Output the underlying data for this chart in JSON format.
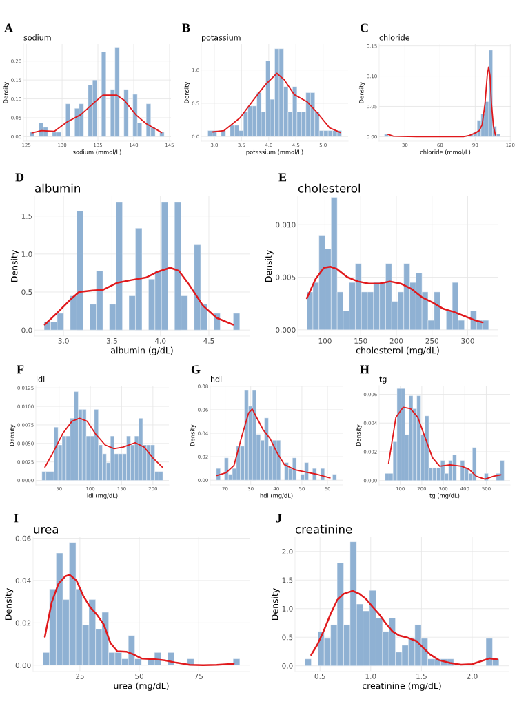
{
  "chart_data": [
    {
      "type": "histogram",
      "title": "A",
      "subtitle": "sodium",
      "xlabel": "sodium (mmol/L)",
      "ylabel": "Density",
      "grid": true,
      "xlim": [
        124.6,
        145.2
      ],
      "xticks": [
        125,
        130,
        135,
        140,
        145
      ],
      "ylim": [
        -0.012,
        0.245
      ],
      "yticks": [
        {
          "value": 0,
          "label": "0.00"
        },
        {
          "value": 0.05,
          "label": "0.05"
        },
        {
          "value": 0.1,
          "label": "0.10"
        },
        {
          "value": 0.15,
          "label": "0.15"
        },
        {
          "value": 0.2,
          "label": "0.20"
        }
      ],
      "series": [
        {
          "color": "#8fb1d3",
          "bins": [
            125.5,
            126.13,
            126.75,
            127.38,
            128,
            128.63,
            129.25,
            129.88,
            130.5,
            131.13,
            131.75,
            132.38,
            133,
            133.63,
            134.25,
            134.88,
            135.5,
            136.13,
            136.75,
            137.38,
            138,
            138.63,
            139.25,
            139.88,
            140.5,
            141.13,
            141.75,
            142.38,
            143,
            143.63,
            144.25
          ],
          "values": [
            0.012,
            0,
            0.037,
            0.025,
            0,
            0.012,
            0.012,
            0,
            0.087,
            0,
            0.075,
            0.087,
            0,
            0.137,
            0.15,
            0,
            0.225,
            0,
            0.125,
            0.237,
            0,
            0.125,
            0,
            0.112,
            0.037,
            0,
            0.087,
            0.025,
            0,
            0.012
          ]
        },
        {
          "type": "line",
          "color": "#e0191c",
          "x": [
            125.8,
            127.1,
            128.9,
            130.7,
            132.6,
            134.4,
            135.7,
            137.6,
            138.7,
            140.3,
            141.7,
            143.9
          ],
          "values": [
            0.01,
            0.016,
            0.014,
            0.039,
            0.058,
            0.089,
            0.11,
            0.11,
            0.096,
            0.058,
            0.035,
            0.011
          ]
        }
      ]
    },
    {
      "type": "histogram",
      "title": "B",
      "subtitle": "potassium",
      "xlabel": "potassium (mmol/L)",
      "ylabel": "Density",
      "grid": true,
      "xlim": [
        2.76,
        5.46
      ],
      "xticks": [
        {
          "value": 3,
          "label": "3.0"
        },
        {
          "value": 3.5,
          "label": "3.5"
        },
        {
          "value": 4,
          "label": "4.0"
        },
        {
          "value": 4.5,
          "label": "4.5"
        },
        {
          "value": 5,
          "label": "5.0"
        }
      ],
      "ylim": [
        -0.07,
        1.39
      ],
      "yticks": [
        {
          "value": 0,
          "label": "0.0"
        },
        {
          "value": 0.5,
          "label": "0.5"
        },
        {
          "value": 1,
          "label": "1.0"
        }
      ],
      "series": [
        {
          "color": "#8fb1d3",
          "bins": [
            2.88,
            2.962,
            3.044,
            3.126,
            3.208,
            3.29,
            3.372,
            3.454,
            3.536,
            3.618,
            3.7,
            3.782,
            3.864,
            3.946,
            4.028,
            4.11,
            4.192,
            4.274,
            4.356,
            4.438,
            4.52,
            4.602,
            4.684,
            4.766,
            4.848,
            4.93,
            5.012,
            5.094,
            5.176,
            5.258,
            5.34
          ],
          "values": [
            0.09,
            0.09,
            0,
            0.09,
            0,
            0.17,
            0.17,
            0.09,
            0.37,
            0.46,
            0.46,
            0.66,
            0.37,
            1.14,
            0.56,
            1.32,
            1.32,
            0.75,
            0.37,
            0.75,
            0.37,
            0.37,
            0.66,
            0.66,
            0.37,
            0.09,
            0.09,
            0.09,
            0.09,
            0.09
          ]
        },
        {
          "type": "line",
          "color": "#e0191c",
          "x": [
            2.97,
            3.18,
            3.47,
            3.71,
            3.94,
            4.15,
            4.29,
            4.47,
            4.71,
            4.88,
            5.12,
            5.32
          ],
          "values": [
            0.07,
            0.09,
            0.28,
            0.54,
            0.78,
            0.95,
            0.85,
            0.63,
            0.52,
            0.37,
            0.13,
            0.06
          ]
        }
      ]
    },
    {
      "type": "histogram",
      "title": "C",
      "subtitle": "chloride",
      "xlabel": "chloride (mmol/L)",
      "ylabel": "Density",
      "grid": true,
      "xlim": [
        8,
        121
      ],
      "xticks": [
        30,
        60,
        90,
        120
      ],
      "ylim": [
        -0.0075,
        0.153
      ],
      "yticks": [
        {
          "value": 0,
          "label": "0.00"
        },
        {
          "value": 0.05,
          "label": "0.05"
        },
        {
          "value": 0.1,
          "label": "0.10"
        },
        {
          "value": 0.15,
          "label": "0.15"
        }
      ],
      "series": [
        {
          "color": "#8fb1d3",
          "bins": [
            12.5,
            15.8,
            19.1,
            22.4,
            25.7,
            29,
            32.3,
            35.6,
            38.9,
            42.2,
            45.5,
            48.8,
            52.1,
            55.4,
            58.7,
            62,
            65.3,
            68.6,
            71.9,
            75.2,
            78.5,
            81.8,
            85.1,
            88.4,
            91.7,
            95,
            98.3,
            101.6,
            104.9,
            108.2,
            111.5
          ],
          "values": [
            0.004,
            0,
            0,
            0,
            0,
            0,
            0,
            0,
            0,
            0,
            0,
            0,
            0,
            0,
            0,
            0,
            0,
            0,
            0,
            0,
            0,
            0,
            0.003,
            0.008,
            0.027,
            0.038,
            0.058,
            0.143,
            0.017,
            0.005
          ]
        },
        {
          "type": "line",
          "color": "#e0191c",
          "x": [
            15.4,
            20,
            40,
            60,
            80,
            85,
            90,
            93.5,
            96,
            98.4,
            100.3,
            101.5,
            102.7,
            103.9,
            105.6,
            107.3
          ],
          "values": [
            0.004,
            0.001,
            0,
            0,
            0,
            0.002,
            0.006,
            0.01,
            0.02,
            0.055,
            0.101,
            0.115,
            0.101,
            0.055,
            0.017,
            0.003
          ]
        }
      ]
    },
    {
      "type": "histogram",
      "title": "D",
      "subtitle": "albumin",
      "xlabel": "albumin (g/dL)",
      "ylabel": "Density",
      "grid": true,
      "xlim": [
        2.7,
        4.92
      ],
      "xticks": [
        {
          "value": 3,
          "label": "3.0"
        },
        {
          "value": 3.5,
          "label": "3.5"
        },
        {
          "value": 4,
          "label": "4.0"
        },
        {
          "value": 4.5,
          "label": "4.5"
        }
      ],
      "ylim": [
        -0.08,
        1.76
      ],
      "yticks": [
        {
          "value": 0,
          "label": "0.0"
        },
        {
          "value": 0.5,
          "label": "0.5"
        },
        {
          "value": 1,
          "label": "1.0"
        },
        {
          "value": 1.5,
          "label": "1.5"
        }
      ],
      "series": [
        {
          "color": "#8fb1d3",
          "bins": [
            2.8,
            2.867,
            2.935,
            3.002,
            3.069,
            3.137,
            3.204,
            3.271,
            3.338,
            3.406,
            3.473,
            3.54,
            3.608,
            3.675,
            3.742,
            3.81,
            3.877,
            3.944,
            4.011,
            4.079,
            4.146,
            4.213,
            4.281,
            4.348,
            4.415,
            4.483,
            4.55,
            4.617,
            4.684,
            4.752,
            4.819
          ],
          "values": [
            0.11,
            0.11,
            0.22,
            0,
            0.45,
            1.57,
            0,
            0.34,
            0.78,
            0,
            0.34,
            1.68,
            0,
            0.45,
            1.34,
            0,
            0.67,
            0.78,
            1.68,
            0,
            1.68,
            0.45,
            0,
            1.12,
            0.34,
            0,
            0.22,
            0,
            0,
            0.22
          ]
        },
        {
          "type": "line",
          "color": "#e0191c",
          "x": [
            2.806,
            2.93,
            3.07,
            3.16,
            3.3,
            3.41,
            3.55,
            3.71,
            3.85,
            3.98,
            4.1,
            4.19,
            4.3,
            4.44,
            4.58,
            4.75
          ],
          "values": [
            0.07,
            0.22,
            0.4,
            0.5,
            0.52,
            0.53,
            0.62,
            0.66,
            0.69,
            0.77,
            0.82,
            0.78,
            0.59,
            0.32,
            0.16,
            0.07
          ]
        }
      ]
    },
    {
      "type": "histogram",
      "title": "E",
      "subtitle": "cholesterol",
      "xlabel": "cholesterol (mg/dL)",
      "ylabel": "Density",
      "grid": true,
      "xlim": [
        61.9,
        342
      ],
      "xticks": [
        100,
        150,
        200,
        250,
        300
      ],
      "ylim": [
        -0.0006,
        0.0127
      ],
      "yticks": [
        {
          "value": 0,
          "label": "0.000"
        },
        {
          "value": 0.005,
          "label": "0.005"
        },
        {
          "value": 0.01,
          "label": "0.010"
        }
      ],
      "series": [
        {
          "color": "#8fb1d3",
          "bins": [
            74.6,
            83.1,
            91.6,
            100.1,
            108.6,
            117.1,
            125.5,
            134.0,
            142.5,
            151.0,
            159.5,
            168.0,
            176.5,
            185.0,
            193.5,
            202.0,
            210.4,
            218.9,
            227.4,
            235.9,
            244.4,
            252.9,
            261.4,
            269.9,
            278.4,
            286.9,
            295.3,
            303.8,
            312.3,
            320.8,
            329.3
          ],
          "values": [
            0.0036,
            0.0045,
            0.009,
            0.0077,
            0.0126,
            0.0036,
            0.0018,
            0.0045,
            0.0063,
            0.0036,
            0.0036,
            0.0045,
            0.0045,
            0.0063,
            0.0027,
            0.0036,
            0.0063,
            0.0045,
            0.0054,
            0.0036,
            0.0009,
            0.0036,
            0,
            0.0018,
            0.0045,
            0.0009,
            0,
            0.0018,
            0.0009,
            0.0009
          ]
        },
        {
          "type": "line",
          "color": "#e0191c",
          "x": [
            74.6,
            86.6,
            98.5,
            107.5,
            116.4,
            131.3,
            146.3,
            161.2,
            176.1,
            191,
            206,
            220.9,
            235.8,
            250.7,
            265.7,
            280.6,
            295.5,
            310.4,
            320.9
          ],
          "values": [
            0.003,
            0.0048,
            0.0059,
            0.006,
            0.0058,
            0.005,
            0.0046,
            0.0044,
            0.0044,
            0.0046,
            0.0044,
            0.0039,
            0.0031,
            0.0026,
            0.002,
            0.0017,
            0.0013,
            0.0009,
            0.0007
          ]
        }
      ]
    },
    {
      "type": "histogram",
      "title": "F",
      "subtitle": "ldl",
      "xlabel": "ldl (mg/dL)",
      "ylabel": "Density",
      "grid": true,
      "xlim": [
        12.9,
        225.5
      ],
      "xticks": [
        50,
        100,
        150,
        200
      ],
      "ylim": [
        -0.0006,
        0.0128
      ],
      "yticks": [
        {
          "value": 0,
          "label": "0.0000"
        },
        {
          "value": 0.0025,
          "label": "0.0025"
        },
        {
          "value": 0.005,
          "label": "0.0050"
        },
        {
          "value": 0.0075,
          "label": "0.0075"
        },
        {
          "value": 0.01,
          "label": "0.0100"
        },
        {
          "value": 0.0125,
          "label": "0.0125"
        }
      ],
      "series": [
        {
          "color": "#8fb1d3",
          "bins": [
            22.6,
            29.0,
            35.5,
            41.9,
            48.4,
            54.8,
            61.2,
            67.7,
            74.1,
            80.6,
            87.0,
            93.4,
            99.9,
            106.3,
            112.8,
            119.2,
            125.6,
            132.1,
            138.5,
            145.0,
            151.4,
            157.8,
            164.3,
            170.7,
            177.2,
            183.6,
            190.0,
            196.5,
            202.9,
            209.4,
            215.8
          ],
          "values": [
            0.0012,
            0.0012,
            0.0012,
            0.0072,
            0.0048,
            0.006,
            0.006,
            0.0084,
            0.012,
            0.0096,
            0.0096,
            0.006,
            0.006,
            0.0096,
            0.0048,
            0.0036,
            0.0024,
            0.006,
            0.0036,
            0.0036,
            0.0036,
            0.006,
            0.0048,
            0.006,
            0.0084,
            0.0048,
            0.0048,
            0.0048,
            0.0012,
            0.0012
          ]
        },
        {
          "type": "line",
          "color": "#e0191c",
          "x": [
            27.4,
            41.8,
            56.3,
            70.7,
            82.7,
            94.7,
            109.1,
            123.6,
            138,
            152.4,
            171.6,
            186.1,
            200.5,
            214.9
          ],
          "values": [
            0.0018,
            0.004,
            0.0064,
            0.008,
            0.0084,
            0.008,
            0.0062,
            0.0048,
            0.0043,
            0.0045,
            0.0051,
            0.0045,
            0.003,
            0.0018
          ]
        }
      ]
    },
    {
      "type": "histogram",
      "title": "G",
      "subtitle": "hdl",
      "xlabel": "hdl (mg/dL)",
      "ylabel": "Density",
      "grid": true,
      "xlim": [
        14.2,
        65.9
      ],
      "xticks": [
        20,
        30,
        40,
        50,
        60
      ],
      "ylim": [
        -0.004,
        0.0805
      ],
      "yticks": [
        {
          "value": 0,
          "label": "0.00"
        },
        {
          "value": 0.02,
          "label": "0.02"
        },
        {
          "value": 0.04,
          "label": "0.04"
        },
        {
          "value": 0.06,
          "label": "0.06"
        },
        {
          "value": 0.08,
          "label": "0.08"
        }
      ],
      "series": [
        {
          "color": "#8fb1d3",
          "bins": [
            16.58,
            18.15,
            19.71,
            21.28,
            22.84,
            24.41,
            25.97,
            27.54,
            29.1,
            30.67,
            32.23,
            33.8,
            35.36,
            36.93,
            38.49,
            40.06,
            41.62,
            43.19,
            44.75,
            46.32,
            47.88,
            49.45,
            51.01,
            52.58,
            54.14,
            55.71,
            57.27,
            58.84,
            60.4,
            61.97,
            63.53
          ],
          "values": [
            0.01,
            0,
            0.019,
            0.005,
            0.01,
            0.029,
            0.029,
            0.077,
            0.063,
            0.077,
            0.039,
            0.034,
            0.053,
            0.029,
            0.034,
            0.034,
            0,
            0.015,
            0.01,
            0.019,
            0,
            0.005,
            0.015,
            0,
            0.01,
            0,
            0.01,
            0,
            0,
            0.005
          ]
        },
        {
          "type": "line",
          "color": "#e0191c",
          "x": [
            16.8,
            20.4,
            23.5,
            26.6,
            29.2,
            30.6,
            32.3,
            34.9,
            37.5,
            40.1,
            43.2,
            47.4,
            51.5,
            55.6,
            61
          ],
          "values": [
            0.004,
            0.0064,
            0.0127,
            0.038,
            0.0573,
            0.0606,
            0.0535,
            0.0428,
            0.0357,
            0.0242,
            0.0132,
            0.0089,
            0.0069,
            0.0051,
            0.002
          ]
        }
      ]
    },
    {
      "type": "histogram",
      "title": "H",
      "subtitle": "tg",
      "xlabel": "tg (mg/dL)",
      "ylabel": "Density",
      "grid": true,
      "xlim": [
        1.7,
        610.6
      ],
      "xticks": [
        100,
        200,
        300,
        400,
        500
      ],
      "ylim": [
        -0.0003,
        0.0066
      ],
      "yticks": [
        {
          "value": 0,
          "label": "0.000"
        },
        {
          "value": 0.002,
          "label": "0.002"
        },
        {
          "value": 0.004,
          "label": "0.004"
        },
        {
          "value": 0.006,
          "label": "0.006"
        }
      ],
      "series": [
        {
          "color": "#8fb1d3",
          "bins": [
            29.4,
            47.9,
            66.3,
            84.8,
            103.2,
            121.7,
            140.1,
            158.6,
            177.0,
            195.5,
            213.9,
            232.4,
            250.8,
            269.3,
            287.7,
            306.2,
            324.6,
            343.1,
            361.5,
            380.0,
            398.4,
            416.9,
            435.3,
            453.8,
            472.2,
            490.7,
            509.1,
            527.6,
            546.0,
            564.5,
            582.9
          ],
          "values": [
            0.0005,
            0.0005,
            0.0027,
            0.0064,
            0.0064,
            0.0032,
            0.0059,
            0.005,
            0.0059,
            0.0032,
            0.0045,
            0.0009,
            0.0009,
            0.0009,
            0.0014,
            0.0005,
            0.0014,
            0.0018,
            0,
            0.0014,
            0.0009,
            0.0005,
            0.0023,
            0,
            0,
            0.0005,
            0,
            0,
            0.0005,
            0.0014
          ]
        },
        {
          "type": "line",
          "color": "#e0191c",
          "x": [
            45.7,
            79.6,
            113.6,
            147.5,
            181.4,
            215.3,
            249.3,
            283.2,
            330.7,
            384.9,
            418.9,
            452.8,
            493.5,
            534.2,
            568.1
          ],
          "values": [
            0.0012,
            0.0044,
            0.0051,
            0.005,
            0.0044,
            0.003,
            0.0016,
            0.001,
            0.0011,
            0.001,
            0.0008,
            0.0003,
            0.0001,
            0.0003,
            0.0004
          ]
        }
      ]
    },
    {
      "type": "histogram",
      "title": "I",
      "subtitle": "urea",
      "xlabel": "urea (mg/dL)",
      "ylabel": "Density",
      "grid": true,
      "xlim": [
        5.3,
        96.4
      ],
      "xticks": [
        25,
        50,
        75
      ],
      "ylim": [
        -0.003,
        0.0605
      ],
      "yticks": [
        {
          "value": 0,
          "label": "0.00"
        },
        {
          "value": 0.02,
          "label": "0.02"
        },
        {
          "value": 0.04,
          "label": "0.04"
        },
        {
          "value": 0.06,
          "label": "0.06"
        }
      ],
      "series": [
        {
          "color": "#8fb1d3",
          "bins": [
            9.5,
            12.2,
            15.0,
            17.8,
            20.5,
            23.3,
            26.0,
            28.8,
            31.6,
            34.3,
            37.1,
            39.8,
            42.6,
            45.4,
            48.1,
            50.9,
            53.6,
            56.4,
            59.2,
            61.9,
            64.7,
            67.4,
            70.2,
            73.0,
            75.7,
            78.5,
            81.2,
            84.0,
            86.8,
            89.5,
            92.3
          ],
          "values": [
            0.006,
            0.036,
            0.053,
            0.031,
            0.058,
            0.036,
            0.019,
            0.031,
            0.017,
            0.025,
            0.006,
            0.006,
            0.003,
            0.014,
            0.003,
            0,
            0.003,
            0.006,
            0,
            0.006,
            0,
            0,
            0.003,
            0,
            0,
            0,
            0,
            0,
            0,
            0.003
          ]
        },
        {
          "type": "line",
          "color": "#e0191c",
          "x": [
            10.24,
            13.1,
            15.95,
            18.81,
            20.71,
            23.57,
            26.43,
            29.29,
            32.14,
            35,
            37.86,
            40.71,
            44.52,
            47.38,
            51.19,
            55.95,
            60.71,
            65.48,
            71.19,
            76.9,
            82.62,
            89.76
          ],
          "values": [
            0.0134,
            0.0296,
            0.0384,
            0.042,
            0.0427,
            0.04,
            0.0327,
            0.0275,
            0.0239,
            0.0193,
            0.0105,
            0.0066,
            0.0064,
            0.0052,
            0.0031,
            0.0029,
            0.0023,
            0.0012,
            0.0002,
            0,
            0.0002,
            0.0007
          ]
        }
      ]
    },
    {
      "type": "histogram",
      "title": "J",
      "subtitle": "creatinine",
      "xlabel": "creatinine (mg/dL)",
      "ylabel": "Density",
      "grid": true,
      "xlim": [
        0.254,
        2.36
      ],
      "xticks": [
        0.5,
        {
          "value": 1,
          "label": "1.0"
        },
        1.5,
        {
          "value": 2,
          "label": "2.0"
        }
      ],
      "ylim": [
        -0.1,
        2.25
      ],
      "yticks": [
        {
          "value": 0,
          "label": "0.0"
        },
        {
          "value": 0.5,
          "label": "0.5"
        },
        {
          "value": 1,
          "label": "1.0"
        },
        {
          "value": 1.5,
          "label": "1.5"
        },
        {
          "value": 2,
          "label": "2.0"
        }
      ],
      "series": [
        {
          "color": "#8fb1d3",
          "bins": [
            0.35,
            0.414,
            0.478,
            0.541,
            0.605,
            0.669,
            0.733,
            0.797,
            0.86,
            0.924,
            0.988,
            1.052,
            1.116,
            1.179,
            1.243,
            1.307,
            1.371,
            1.435,
            1.498,
            1.562,
            1.626,
            1.69,
            1.754,
            1.817,
            1.881,
            1.945,
            2.009,
            2.073,
            2.136,
            2.2,
            2.264
          ],
          "values": [
            0.12,
            0,
            0.6,
            0.48,
            0.72,
            1.8,
            0.72,
            2.17,
            1.08,
            0.96,
            1.32,
            0.84,
            0.6,
            0.84,
            0.24,
            0.36,
            0.48,
            0.72,
            0.48,
            0.12,
            0.12,
            0.12,
            0.12,
            0,
            0,
            0,
            0,
            0,
            0.48,
            0.12
          ]
        },
        {
          "type": "line",
          "color": "#e0191c",
          "x": [
            0.413,
            0.474,
            0.539,
            0.605,
            0.67,
            0.735,
            0.822,
            0.888,
            0.953,
            1.019,
            1.084,
            1.149,
            1.215,
            1.28,
            1.367,
            1.454,
            1.52,
            1.585,
            1.672,
            1.781,
            1.89,
            1.999,
            2.086,
            2.173,
            2.249
          ],
          "values": [
            0.19,
            0.37,
            0.62,
            0.91,
            1.15,
            1.26,
            1.31,
            1.26,
            1.17,
            1.03,
            0.9,
            0.74,
            0.6,
            0.53,
            0.49,
            0.43,
            0.31,
            0.2,
            0.1,
            0.05,
            0.02,
            0.03,
            0.08,
            0.13,
            0.11
          ]
        }
      ]
    }
  ]
}
